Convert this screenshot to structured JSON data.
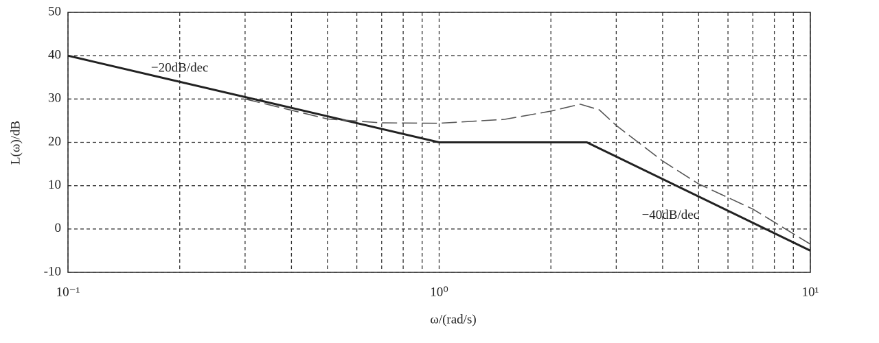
{
  "chart_data": {
    "type": "line",
    "xlabel": "ω/(rad/s)",
    "ylabel": "L(ω)/dB",
    "log_x": true,
    "grid": true,
    "xlim": [
      0.1,
      10
    ],
    "ylim": [
      -10,
      50
    ],
    "xticks": [
      {
        "value": 0.1,
        "label": "10⁻¹"
      },
      {
        "value": 1,
        "label": "10⁰"
      },
      {
        "value": 10,
        "label": "10¹"
      }
    ],
    "xgrid": [
      0.2,
      0.3,
      0.4,
      0.5,
      0.6,
      0.7,
      0.8,
      0.9,
      2,
      3,
      4,
      5,
      6,
      7,
      8,
      9
    ],
    "yticks": [
      -10,
      0,
      10,
      20,
      30,
      40,
      50
    ],
    "series": [
      {
        "style": "solid",
        "color": "#222222",
        "x": [
          0.1,
          1,
          2.5,
          10
        ],
        "values": [
          40,
          20,
          20,
          -5
        ]
      },
      {
        "style": "dashed",
        "color": "#555555",
        "x": [
          0.3,
          0.5,
          0.7,
          1,
          1.5,
          2,
          2.4,
          2.7,
          3,
          4,
          5,
          7,
          10
        ],
        "values": [
          30,
          25.4,
          24.5,
          24.4,
          25.3,
          27.2,
          28.8,
          27.5,
          23.9,
          15.7,
          10.4,
          4.6,
          -3.5
        ]
      }
    ],
    "annotations": [
      {
        "text": "−20dB/dec",
        "x": 0.2,
        "y": 37
      },
      {
        "text": "−40dB/dec",
        "x": 4.2,
        "y": 3
      }
    ]
  }
}
